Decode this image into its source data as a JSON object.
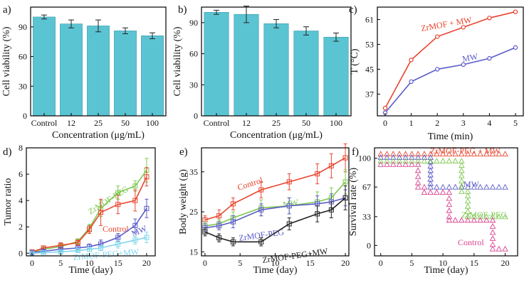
{
  "chart_data": [
    {
      "panel": "a)",
      "type": "bar",
      "xlabel": "Concentration (μg/mL)",
      "ylabel": "Cell viability (%)",
      "ylim": [
        0,
        110
      ],
      "yticks": [
        0,
        30,
        60,
        90
      ],
      "categories": [
        "Control",
        "12",
        "25",
        "50",
        "100"
      ],
      "values": [
        100,
        93,
        91,
        86,
        81
      ],
      "errors": [
        2,
        4,
        6,
        3,
        3
      ],
      "bar_color": "#5bc4d2"
    },
    {
      "panel": "b)",
      "type": "bar",
      "xlabel": "Concentration (μg/mL)",
      "ylabel": "Cell viability (%)",
      "ylim": [
        0,
        105
      ],
      "yticks": [
        0,
        30,
        60,
        90
      ],
      "categories": [
        "Control",
        "12",
        "25",
        "50",
        "100"
      ],
      "values": [
        100,
        98,
        89,
        82,
        76
      ],
      "errors": [
        2,
        8,
        4,
        4,
        4
      ],
      "bar_color": "#5bc4d2"
    },
    {
      "panel": "c)",
      "type": "line",
      "xlabel": "Time (min)",
      "ylabel": "T (°C)",
      "xlim": [
        -0.3,
        5.3
      ],
      "ylim": [
        30,
        65
      ],
      "xticks": [
        0,
        1,
        2,
        3,
        4,
        5
      ],
      "yticks": [
        37,
        45,
        53,
        61
      ],
      "x": [
        0,
        1,
        2,
        3,
        4,
        5
      ],
      "series": [
        {
          "name": "ZrMOF + MW",
          "color": "#e8452e",
          "values": [
            32.5,
            48,
            55.5,
            58.5,
            61.5,
            63.5
          ]
        },
        {
          "name": "MW",
          "color": "#5a5ac8",
          "values": [
            31,
            41,
            45,
            46.5,
            48.5,
            52
          ]
        }
      ]
    },
    {
      "panel": "d)",
      "type": "line",
      "xlabel": "Time (day)",
      "ylabel": "Tumor ratio",
      "xlim": [
        -1,
        21.5
      ],
      "ylim": [
        -0.2,
        8
      ],
      "xticks": [
        0,
        5,
        10,
        15,
        20
      ],
      "yticks": [
        0,
        2,
        4,
        6,
        8
      ],
      "x": [
        0,
        2,
        5,
        8,
        10,
        12,
        15,
        18,
        20
      ],
      "series": [
        {
          "name": "ZrMOF-PEG",
          "color": "#7ec850",
          "values": [
            0.1,
            0.3,
            0.5,
            0.9,
            1.9,
            3.4,
            4.6,
            5.1,
            6.3
          ],
          "errors": [
            0.1,
            0.15,
            0.2,
            0.2,
            0.3,
            0.6,
            0.5,
            0.4,
            0.9
          ]
        },
        {
          "name": "Control",
          "color": "#e8452e",
          "values": [
            0.1,
            0.4,
            0.6,
            0.8,
            1.8,
            3.1,
            3.7,
            4.0,
            5.8
          ],
          "errors": [
            0.1,
            0.15,
            0.2,
            0.2,
            0.3,
            1.0,
            0.7,
            0.8,
            0.7
          ]
        },
        {
          "name": "MW",
          "color": "#5a5ac8",
          "values": [
            0.05,
            0.15,
            0.3,
            0.4,
            0.5,
            0.7,
            1.2,
            2.1,
            3.4
          ],
          "errors": [
            0.05,
            0.1,
            0.15,
            0.15,
            0.2,
            0.3,
            0.3,
            0.5,
            0.7
          ]
        },
        {
          "name": "ZrMOF-PEG+MW",
          "color": "#7fd6ec",
          "values": [
            0.0,
            0.05,
            0.1,
            0.2,
            0.3,
            0.4,
            0.7,
            1.0,
            1.2
          ],
          "errors": [
            0.05,
            0.05,
            0.1,
            0.1,
            0.15,
            0.2,
            0.3,
            0.3,
            0.4
          ]
        }
      ]
    },
    {
      "panel": "e)",
      "type": "line",
      "xlabel": "Time (day)",
      "ylabel": "Body weight (g)",
      "xlim": [
        -0.5,
        20.5
      ],
      "ylim": [
        14,
        41
      ],
      "xticks": [
        0,
        5,
        10,
        15,
        20
      ],
      "yticks": [
        15,
        25,
        35
      ],
      "x": [
        0,
        2,
        4,
        8,
        12,
        16,
        18,
        20
      ],
      "series": [
        {
          "name": "Control",
          "color": "#e8452e",
          "values": [
            23,
            24,
            27,
            30.5,
            32.5,
            34.5,
            36.5,
            38.5
          ],
          "errors": [
            1,
            1.5,
            1.5,
            2,
            2,
            2.5,
            3,
            3.5
          ]
        },
        {
          "name": "MW",
          "color": "#7ec850",
          "values": [
            21.5,
            22,
            23.5,
            26,
            26.5,
            27.5,
            28.5,
            32.5
          ],
          "errors": [
            1,
            1,
            1.5,
            2,
            2,
            2.5,
            2.5,
            3
          ]
        },
        {
          "name": "ZrMOF-PEG",
          "color": "#5a5ac8",
          "values": [
            21,
            21.5,
            22.5,
            25.5,
            26.5,
            27,
            27.5,
            28.5
          ],
          "errors": [
            1,
            1,
            1.5,
            1.5,
            2,
            2,
            2,
            2
          ]
        },
        {
          "name": "ZrMOF-PEG+MW",
          "color": "#222222",
          "values": [
            20,
            18.5,
            17.5,
            17.5,
            22,
            24.5,
            25.5,
            28.5
          ],
          "errors": [
            1,
            1,
            1,
            1,
            1.5,
            2,
            2,
            3
          ]
        }
      ]
    },
    {
      "panel": "f)",
      "type": "scatter",
      "xlabel": "Time (day)",
      "ylabel": "Survival rate (%)",
      "xlim": [
        -1,
        22
      ],
      "ylim": [
        -12,
        112
      ],
      "xticks": [
        0,
        5,
        10,
        15,
        20
      ],
      "yticks": [
        0,
        33,
        67,
        100
      ],
      "marker": "triangle",
      "series": [
        {
          "name": "ZrMOF-PEG + MW",
          "color": "#e8452e",
          "points": [
            [
              0,
              105
            ],
            [
              1,
              105
            ],
            [
              2,
              105
            ],
            [
              3,
              105
            ],
            [
              4,
              105
            ],
            [
              5,
              105
            ],
            [
              6,
              105
            ],
            [
              7,
              105
            ],
            [
              8,
              105
            ],
            [
              9,
              105
            ],
            [
              10,
              105
            ],
            [
              11,
              105
            ],
            [
              12,
              105
            ],
            [
              13,
              105
            ],
            [
              14,
              105
            ],
            [
              15,
              105
            ],
            [
              16,
              105
            ],
            [
              17,
              105
            ],
            [
              18,
              105
            ],
            [
              19,
              105
            ],
            [
              20,
              105
            ]
          ]
        },
        {
          "name": "MW",
          "color": "#5a5ac8",
          "points": [
            [
              0,
              101
            ],
            [
              1,
              101
            ],
            [
              2,
              101
            ],
            [
              3,
              101
            ],
            [
              4,
              101
            ],
            [
              5,
              101
            ],
            [
              6,
              101
            ],
            [
              7,
              101
            ],
            [
              8,
              101
            ],
            [
              8,
              96
            ],
            [
              8,
              91
            ],
            [
              8,
              86
            ],
            [
              8,
              81
            ],
            [
              8,
              76
            ],
            [
              8,
              71
            ],
            [
              8,
              67
            ],
            [
              9,
              67
            ],
            [
              10,
              67
            ],
            [
              11,
              67
            ],
            [
              12,
              67
            ],
            [
              13,
              67
            ],
            [
              14,
              67
            ],
            [
              15,
              67
            ],
            [
              16,
              67
            ],
            [
              17,
              67
            ],
            [
              18,
              67
            ],
            [
              19,
              67
            ],
            [
              20,
              67
            ]
          ]
        },
        {
          "name": "ZrMOF-PEG",
          "color": "#7ec850",
          "points": [
            [
              0,
              97
            ],
            [
              1,
              97
            ],
            [
              2,
              97
            ],
            [
              3,
              97
            ],
            [
              4,
              97
            ],
            [
              5,
              97
            ],
            [
              6,
              97
            ],
            [
              7,
              97
            ],
            [
              8,
              97
            ],
            [
              9,
              97
            ],
            [
              10,
              97
            ],
            [
              11,
              97
            ],
            [
              12,
              97
            ],
            [
              13,
              97
            ],
            [
              13,
              92
            ],
            [
              13,
              86
            ],
            [
              13,
              80
            ],
            [
              13,
              74
            ],
            [
              13,
              68
            ],
            [
              13,
              62
            ],
            [
              14,
              62
            ],
            [
              14,
              57
            ],
            [
              14,
              51
            ],
            [
              14,
              45
            ],
            [
              14,
              39
            ],
            [
              14,
              33
            ],
            [
              15,
              33
            ],
            [
              16,
              33
            ],
            [
              17,
              33
            ],
            [
              18,
              33
            ],
            [
              19,
              33
            ],
            [
              20,
              33
            ]
          ]
        },
        {
          "name": "Control",
          "color": "#d8408f",
          "points": [
            [
              0,
              93
            ],
            [
              1,
              93
            ],
            [
              2,
              93
            ],
            [
              3,
              93
            ],
            [
              4,
              93
            ],
            [
              5,
              93
            ],
            [
              6,
              93
            ],
            [
              6,
              86
            ],
            [
              6,
              79
            ],
            [
              6,
              72
            ],
            [
              6,
              67
            ],
            [
              7,
              67
            ],
            [
              7,
              61
            ],
            [
              8,
              61
            ],
            [
              9,
              61
            ],
            [
              10,
              61
            ],
            [
              11,
              61
            ],
            [
              11,
              54
            ],
            [
              11,
              47
            ],
            [
              11,
              40
            ],
            [
              11,
              33
            ],
            [
              11,
              29
            ],
            [
              12,
              29
            ],
            [
              13,
              29
            ],
            [
              14,
              29
            ],
            [
              15,
              29
            ],
            [
              16,
              29
            ],
            [
              17,
              29
            ],
            [
              18,
              29
            ],
            [
              18,
              22
            ],
            [
              18,
              15
            ],
            [
              18,
              8
            ],
            [
              18,
              1
            ],
            [
              18,
              -4
            ],
            [
              19,
              -4
            ],
            [
              20,
              -4
            ]
          ]
        }
      ]
    }
  ]
}
